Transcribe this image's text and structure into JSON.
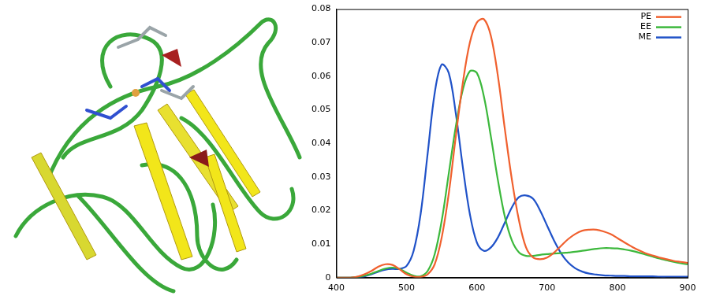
{
  "chart_data": {
    "type": "line",
    "x": [
      400,
      410,
      420,
      430,
      440,
      450,
      460,
      470,
      480,
      490,
      500,
      510,
      520,
      530,
      540,
      550,
      560,
      570,
      580,
      590,
      600,
      610,
      620,
      630,
      640,
      650,
      660,
      670,
      680,
      690,
      700,
      710,
      720,
      730,
      740,
      750,
      760,
      770,
      780,
      790,
      800,
      810,
      820,
      830,
      840,
      850,
      860,
      870,
      880,
      890,
      900
    ],
    "series": [
      {
        "name": "PE",
        "color": "#f0602e",
        "values": [
          0,
          0,
          0,
          0.0003,
          0.001,
          0.002,
          0.0033,
          0.004,
          0.0038,
          0.0025,
          0.001,
          0.0003,
          0.0002,
          0.001,
          0.004,
          0.012,
          0.025,
          0.042,
          0.058,
          0.07,
          0.076,
          0.077,
          0.072,
          0.06,
          0.044,
          0.029,
          0.017,
          0.009,
          0.006,
          0.0055,
          0.006,
          0.0075,
          0.0095,
          0.0115,
          0.013,
          0.014,
          0.0143,
          0.0143,
          0.0138,
          0.013,
          0.0118,
          0.0105,
          0.0093,
          0.0082,
          0.0073,
          0.0066,
          0.006,
          0.0055,
          0.005,
          0.0047,
          0.0044
        ]
      },
      {
        "name": "EE",
        "color": "#3cb83c",
        "values": [
          0,
          0,
          0,
          0.0002,
          0.0006,
          0.0012,
          0.002,
          0.0027,
          0.003,
          0.0026,
          0.0015,
          0.0006,
          0.0004,
          0.002,
          0.007,
          0.017,
          0.031,
          0.045,
          0.056,
          0.0615,
          0.061,
          0.054,
          0.042,
          0.029,
          0.018,
          0.011,
          0.0075,
          0.0065,
          0.0065,
          0.0068,
          0.007,
          0.0072,
          0.0073,
          0.0075,
          0.0077,
          0.008,
          0.0083,
          0.0086,
          0.0088,
          0.0088,
          0.0087,
          0.0084,
          0.008,
          0.0075,
          0.0069,
          0.0063,
          0.0057,
          0.0052,
          0.0047,
          0.0043,
          0.004
        ]
      },
      {
        "name": "ME",
        "color": "#2052c8",
        "values": [
          0,
          0,
          0,
          0.0001,
          0.0004,
          0.001,
          0.0018,
          0.0024,
          0.0026,
          0.0026,
          0.0035,
          0.008,
          0.019,
          0.037,
          0.055,
          0.0635,
          0.061,
          0.049,
          0.033,
          0.019,
          0.0105,
          0.008,
          0.009,
          0.012,
          0.0165,
          0.021,
          0.024,
          0.0245,
          0.0235,
          0.02,
          0.0155,
          0.011,
          0.0072,
          0.0045,
          0.0028,
          0.0018,
          0.0012,
          0.0009,
          0.0007,
          0.0006,
          0.0005,
          0.0005,
          0.0004,
          0.0004,
          0.0004,
          0.0004,
          0.0003,
          0.0003,
          0.0003,
          0.0003,
          0.0003
        ]
      }
    ],
    "xlim": [
      400,
      900
    ],
    "xticks": [
      400,
      500,
      600,
      700,
      800,
      900
    ],
    "ylim": [
      0,
      0.08
    ],
    "yticks": [
      0,
      0.01,
      0.02,
      0.03,
      0.04,
      0.05,
      0.06,
      0.07,
      0.08
    ],
    "grid": false,
    "legend": "upper right"
  }
}
